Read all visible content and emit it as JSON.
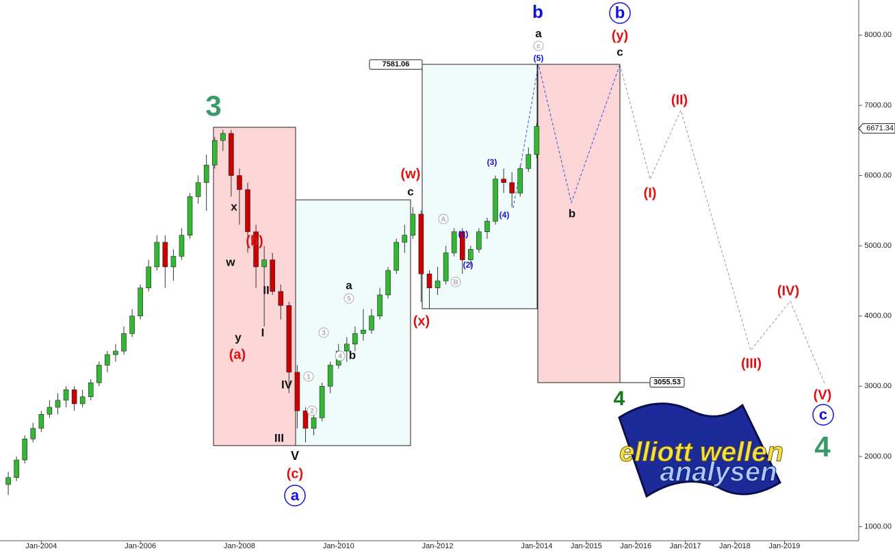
{
  "chart_data": {
    "type": "candlestick",
    "x": [
      "2003-04",
      "2003-06",
      "2003-08",
      "2003-10",
      "2003-12",
      "2004-02",
      "2004-04",
      "2004-06",
      "2004-08",
      "2004-10",
      "2004-12",
      "2005-02",
      "2005-04",
      "2005-06",
      "2005-08",
      "2005-10",
      "2005-12",
      "2006-02",
      "2006-04",
      "2006-06",
      "2006-08",
      "2006-10",
      "2006-12",
      "2007-02",
      "2007-04",
      "2007-06",
      "2007-08",
      "2007-10",
      "2007-12",
      "2008-02",
      "2008-04",
      "2008-06",
      "2008-08",
      "2008-10",
      "2008-12",
      "2009-02",
      "2009-04",
      "2009-06",
      "2009-08",
      "2009-10",
      "2009-12",
      "2010-02",
      "2010-04",
      "2010-06",
      "2010-08",
      "2010-10",
      "2010-12",
      "2011-02",
      "2011-04",
      "2011-06",
      "2011-08",
      "2011-10",
      "2011-12",
      "2012-02",
      "2012-04",
      "2012-06",
      "2012-08",
      "2012-10",
      "2012-12",
      "2013-02",
      "2013-04",
      "2013-06",
      "2013-08",
      "2013-10",
      "2013-12"
    ],
    "open": [
      1600,
      1700,
      1950,
      2250,
      2400,
      2600,
      2700,
      2800,
      2950,
      2750,
      2850,
      3050,
      3300,
      3450,
      3500,
      3750,
      4000,
      4400,
      4700,
      5050,
      4700,
      4850,
      5150,
      5700,
      5900,
      6150,
      6500,
      6600,
      6000,
      5800,
      5200,
      4700,
      4800,
      4350,
      4150,
      3200,
      2650,
      2400,
      2550,
      3000,
      3300,
      3500,
      3600,
      3750,
      3800,
      4000,
      4300,
      4650,
      5050,
      5150,
      5450,
      4600,
      4400,
      4500,
      4900,
      5200,
      4800,
      4950,
      5200,
      5350,
      5950,
      5900,
      5750,
      6100,
      6300
    ],
    "high": [
      1780,
      2000,
      2300,
      2480,
      2650,
      2800,
      2900,
      3000,
      3000,
      2950,
      3100,
      3350,
      3500,
      3600,
      3850,
      4100,
      4450,
      4800,
      5150,
      5150,
      4950,
      5250,
      5750,
      6000,
      6300,
      6550,
      6650,
      6650,
      6100,
      5900,
      5300,
      5000,
      4900,
      4450,
      4200,
      3300,
      2700,
      2650,
      3050,
      3350,
      3600,
      3700,
      3850,
      4100,
      4100,
      4400,
      4700,
      5100,
      5300,
      5550,
      5500,
      4650,
      4700,
      5000,
      5250,
      5250,
      5000,
      5250,
      5400,
      6000,
      6100,
      6050,
      6150,
      6400,
      6750
    ],
    "low": [
      1450,
      1650,
      1900,
      2200,
      2350,
      2550,
      2600,
      2700,
      2650,
      2700,
      2800,
      3000,
      3200,
      3350,
      3450,
      3700,
      3950,
      4350,
      4650,
      4400,
      4500,
      4800,
      5100,
      5600,
      5500,
      6100,
      6350,
      5700,
      5300,
      4900,
      4400,
      3850,
      4300,
      3950,
      2900,
      2400,
      2200,
      2300,
      2500,
      2900,
      3250,
      3350,
      3500,
      3650,
      3750,
      3950,
      4250,
      4600,
      4900,
      5100,
      4200,
      4100,
      4300,
      4450,
      4850,
      4600,
      4700,
      4900,
      5100,
      5300,
      5750,
      5550,
      5700,
      6050,
      6250
    ],
    "close": [
      1700,
      1950,
      2250,
      2400,
      2600,
      2700,
      2800,
      2950,
      2750,
      2850,
      3050,
      3300,
      3450,
      3500,
      3750,
      4000,
      4400,
      4700,
      5050,
      4700,
      4850,
      5150,
      5700,
      5900,
      6150,
      6500,
      6600,
      6000,
      5800,
      5200,
      4700,
      4800,
      4350,
      4150,
      3200,
      2650,
      2400,
      2550,
      3000,
      3300,
      3500,
      3600,
      3750,
      3800,
      4000,
      4300,
      4650,
      5050,
      5150,
      5450,
      4600,
      4400,
      4500,
      4900,
      5200,
      4800,
      4950,
      5200,
      5350,
      5950,
      5900,
      5750,
      6100,
      6300,
      6700
    ],
    "up_color": "#33b833",
    "down_color": "#cc0000",
    "xlim": [
      "2003-03",
      "2020-07"
    ],
    "xticks": [
      {
        "value": "2004-01",
        "label": "Jan-2004"
      },
      {
        "value": "2006-01",
        "label": "Jan-2006"
      },
      {
        "value": "2008-01",
        "label": "Jan-2008"
      },
      {
        "value": "2010-01",
        "label": "Jan-2010"
      },
      {
        "value": "2012-01",
        "label": "Jan-2012"
      },
      {
        "value": "2014-01",
        "label": "Jan-2014"
      },
      {
        "value": "2015-01",
        "label": "Jan-2015"
      },
      {
        "value": "2016-01",
        "label": "Jan-2016"
      },
      {
        "value": "2017-01",
        "label": "Jan-2017"
      },
      {
        "value": "2018-01",
        "label": "Jan-2018"
      },
      {
        "value": "2019-01",
        "label": "Jan-2019"
      }
    ],
    "ylim": [
      800,
      8500
    ],
    "yticks": [
      {
        "value": 1000,
        "label": "1000.00"
      },
      {
        "value": 2000,
        "label": "2000.00"
      },
      {
        "value": 3000,
        "label": "3000.00"
      },
      {
        "value": 4000,
        "label": "4000.00"
      },
      {
        "value": 5000,
        "label": "5000.00"
      },
      {
        "value": 6000,
        "label": "6000.00"
      },
      {
        "value": 7000,
        "label": "7000.00"
      },
      {
        "value": 8000,
        "label": "8000.00"
      }
    ],
    "levels": [
      7581.06,
      3055.53
    ],
    "last_price": 6671.34,
    "annotations": [
      {
        "text": "3",
        "color": "#3a9a6a"
      },
      {
        "text": "x",
        "color": "#111"
      },
      {
        "text": "(b)",
        "color": "#e01010"
      },
      {
        "text": "w",
        "color": "#111"
      },
      {
        "text": "II",
        "color": "#111"
      },
      {
        "text": "I",
        "color": "#111"
      },
      {
        "text": "y",
        "color": "#111"
      },
      {
        "text": "(a)",
        "color": "#e01010"
      },
      {
        "text": "IV",
        "color": "#111"
      },
      {
        "text": "III",
        "color": "#111"
      },
      {
        "text": "V",
        "color": "#111"
      },
      {
        "text": "(c)",
        "color": "#e01010"
      },
      {
        "text": "a",
        "color": "#1010e0"
      },
      {
        "text": "a",
        "color": "#111"
      },
      {
        "text": "5",
        "color": "#aaaaaa"
      },
      {
        "text": "3",
        "color": "#aaaaaa"
      },
      {
        "text": "4",
        "color": "#aaaaaa"
      },
      {
        "text": "b",
        "color": "#111"
      },
      {
        "text": "1",
        "color": "#aaaaaa"
      },
      {
        "text": "2",
        "color": "#aaaaaa"
      },
      {
        "text": "(w)",
        "color": "#e01010"
      },
      {
        "text": "c",
        "color": "#111"
      },
      {
        "text": "(x)",
        "color": "#e01010"
      },
      {
        "text": "A",
        "color": "#aaaaaa"
      },
      {
        "text": "(1)",
        "color": "#1010e0"
      },
      {
        "text": "(2)",
        "color": "#1010e0"
      },
      {
        "text": "B",
        "color": "#aaaaaa"
      },
      {
        "text": "(3)",
        "color": "#1010e0"
      },
      {
        "text": "(4)",
        "color": "#1010e0"
      },
      {
        "text": "b",
        "color": "#1010e0"
      },
      {
        "text": "a",
        "color": "#111"
      },
      {
        "text": "c",
        "color": "#aaaaaa"
      },
      {
        "text": "(5)",
        "color": "#1010e0"
      },
      {
        "text": "b",
        "color": "#111"
      },
      {
        "text": "b",
        "color": "#1010e0"
      },
      {
        "text": "(y)",
        "color": "#e01010"
      },
      {
        "text": "c",
        "color": "#111"
      },
      {
        "text": "4",
        "color": "#1a7a1a"
      },
      {
        "text": "(II)",
        "color": "#e01010"
      },
      {
        "text": "(I)",
        "color": "#e01010"
      },
      {
        "text": "(IV)",
        "color": "#e01010"
      },
      {
        "text": "(III)",
        "color": "#e01010"
      },
      {
        "text": "(V)",
        "color": "#e01010"
      },
      {
        "text": "c",
        "color": "#1010e0"
      },
      {
        "text": "4",
        "color": "#3a9a6a"
      }
    ],
    "logo": {
      "line1": "elliott wellen",
      "line2": "analysen"
    }
  }
}
